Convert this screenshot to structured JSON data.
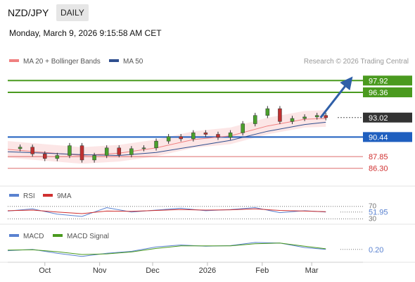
{
  "header": {
    "pair": "NZD/JPY",
    "period": "DAILY",
    "timestamp": "Monday, March 9, 2026 9:15:58 AM CET"
  },
  "chart_data": [
    {
      "type": "line",
      "panel": "price",
      "title": "",
      "legend": [
        {
          "name": "MA 20 + Bollinger Bands",
          "color": "#f08080"
        },
        {
          "name": "MA 50",
          "color": "#2f4f8f"
        }
      ],
      "legend_position": "top-left",
      "credit": "Research © 2026 Trading Central",
      "x_labels": [
        "Oct",
        "Nov",
        "Dec",
        "2026",
        "Feb",
        "Mar"
      ],
      "x_range": [
        "2025-09-10",
        "2026-03-30"
      ],
      "ylim": [
        84.5,
        100
      ],
      "levels": [
        {
          "value": 97.92,
          "label": "97.92",
          "kind": "resistance",
          "color": "#4a9a1f"
        },
        {
          "value": 96.36,
          "label": "96.36",
          "kind": "resistance",
          "color": "#4a9a1f"
        },
        {
          "value": 93.02,
          "label": "93.02",
          "kind": "last-price",
          "color": "#333333"
        },
        {
          "value": 90.44,
          "label": "90.44",
          "kind": "pivot",
          "color": "#1f5fbf"
        },
        {
          "value": 87.85,
          "label": "87.85",
          "kind": "support",
          "color": "#d03030"
        },
        {
          "value": 86.3,
          "label": "86.30",
          "kind": "support",
          "color": "#d03030"
        }
      ],
      "arrow": {
        "from": {
          "x": "2026-03-06",
          "y": 93.0
        },
        "to": {
          "x": "2026-03-22",
          "y": 97.8
        },
        "color": "#2f5fa8"
      },
      "series": [
        {
          "name": "NZD/JPY close",
          "color": "#c03030",
          "x": [
            "2025-09-10",
            "2025-09-17",
            "2025-09-24",
            "2025-10-01",
            "2025-10-08",
            "2025-10-15",
            "2025-10-22",
            "2025-10-29",
            "2025-11-05",
            "2025-11-12",
            "2025-11-19",
            "2025-11-26",
            "2025-12-03",
            "2025-12-10",
            "2025-12-17",
            "2025-12-24",
            "2025-12-31",
            "2026-01-07",
            "2026-01-14",
            "2026-01-21",
            "2026-01-28",
            "2026-02-04",
            "2026-02-11",
            "2026-02-18",
            "2026-02-25",
            "2026-03-04",
            "2026-03-09"
          ],
          "y": [
            88.9,
            89.1,
            88.2,
            87.6,
            88.0,
            89.3,
            87.4,
            88.0,
            89.0,
            88.1,
            88.9,
            89.0,
            89.9,
            90.5,
            90.2,
            91.0,
            90.8,
            90.4,
            91.0,
            92.2,
            93.3,
            94.2,
            92.5,
            92.9,
            93.1,
            93.3,
            93.0
          ]
        },
        {
          "name": "MA 20",
          "color": "#f08080",
          "x": [
            "2025-09-10",
            "2025-10-01",
            "2025-10-22",
            "2025-11-12",
            "2025-12-03",
            "2025-12-24",
            "2026-01-14",
            "2026-02-04",
            "2026-02-25",
            "2026-03-09"
          ],
          "y": [
            88.8,
            88.4,
            88.0,
            88.3,
            89.0,
            90.1,
            90.6,
            91.9,
            92.8,
            92.9
          ]
        },
        {
          "name": "MA 50",
          "color": "#2f4f8f",
          "x": [
            "2025-09-10",
            "2025-10-01",
            "2025-10-22",
            "2025-11-12",
            "2025-12-03",
            "2025-12-24",
            "2026-01-14",
            "2026-02-04",
            "2026-02-25",
            "2026-03-09"
          ],
          "y": [
            88.5,
            88.3,
            88.1,
            88.0,
            88.4,
            89.2,
            90.0,
            91.2,
            92.1,
            92.4
          ]
        }
      ]
    },
    {
      "type": "line",
      "panel": "rsi",
      "legend": [
        {
          "name": "RSI",
          "color": "#5a82d0"
        },
        {
          "name": "9MA",
          "color": "#d03030"
        }
      ],
      "levels": [
        {
          "value": 70,
          "label": "70"
        },
        {
          "value": 30,
          "label": "30"
        }
      ],
      "last_value": {
        "value": 51.95,
        "label": "51.95"
      },
      "ylim": [
        20,
        85
      ],
      "series": [
        {
          "name": "RSI",
          "color": "#5a82d0",
          "x": [
            "2025-09-10",
            "2025-09-24",
            "2025-10-08",
            "2025-10-22",
            "2025-11-05",
            "2025-11-19",
            "2025-12-03",
            "2025-12-17",
            "2025-12-31",
            "2026-01-14",
            "2026-01-28",
            "2026-02-11",
            "2026-02-25",
            "2026-03-09"
          ],
          "y": [
            55,
            62,
            45,
            38,
            66,
            52,
            58,
            64,
            56,
            60,
            66,
            50,
            56,
            51.95
          ]
        },
        {
          "name": "9MA",
          "color": "#d03030",
          "x": [
            "2025-09-10",
            "2025-09-24",
            "2025-10-08",
            "2025-10-22",
            "2025-11-05",
            "2025-11-19",
            "2025-12-03",
            "2025-12-17",
            "2025-12-31",
            "2026-01-14",
            "2026-01-28",
            "2026-02-11",
            "2026-02-25",
            "2026-03-09"
          ],
          "y": [
            56,
            58,
            52,
            47,
            55,
            54,
            57,
            60,
            58,
            59,
            62,
            57,
            55,
            53
          ]
        }
      ]
    },
    {
      "type": "line",
      "panel": "macd",
      "legend": [
        {
          "name": "MACD",
          "color": "#5a82d0"
        },
        {
          "name": "MACD Signal",
          "color": "#4a9a1f"
        }
      ],
      "last_value": {
        "value": 0.2,
        "label": "0.20"
      },
      "ylim": [
        -0.7,
        1.3
      ],
      "series": [
        {
          "name": "MACD",
          "color": "#5a82d0",
          "x": [
            "2025-09-10",
            "2025-09-24",
            "2025-10-08",
            "2025-10-22",
            "2025-11-05",
            "2025-11-19",
            "2025-12-03",
            "2025-12-17",
            "2025-12-31",
            "2026-01-14",
            "2026-01-28",
            "2026-02-11",
            "2026-02-25",
            "2026-03-09"
          ],
          "y": [
            0.1,
            0.2,
            -0.1,
            -0.35,
            -0.1,
            0.05,
            0.4,
            0.55,
            0.45,
            0.5,
            0.75,
            0.7,
            0.35,
            0.2
          ]
        },
        {
          "name": "MACD Signal",
          "color": "#4a9a1f",
          "x": [
            "2025-09-10",
            "2025-09-24",
            "2025-10-08",
            "2025-10-22",
            "2025-11-05",
            "2025-11-19",
            "2025-12-03",
            "2025-12-17",
            "2025-12-31",
            "2026-01-14",
            "2026-01-28",
            "2026-02-11",
            "2026-02-25",
            "2026-03-09"
          ],
          "y": [
            0.15,
            0.18,
            0.02,
            -0.2,
            -0.15,
            0.0,
            0.28,
            0.48,
            0.48,
            0.48,
            0.65,
            0.7,
            0.45,
            0.25
          ]
        }
      ]
    }
  ]
}
